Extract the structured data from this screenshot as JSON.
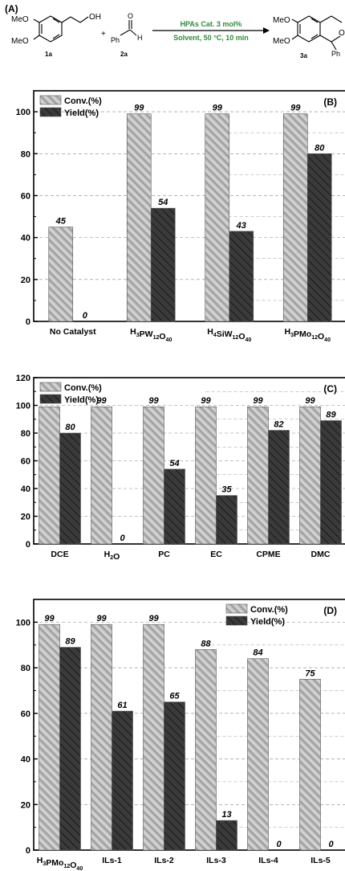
{
  "colors": {
    "reagent_green": "#2e8b3c",
    "conv_fill": "#c8c8c8",
    "yield_fill": "#3a3a3a",
    "axis": "#000000"
  },
  "scheme": {
    "panel": "(A)",
    "c1": "1a",
    "c2": "2a",
    "c3": "3a",
    "s1_ome1": "MeO",
    "s1_ome2": "MeO",
    "s1_oh": "OH",
    "s2_o": "O",
    "s2_h": "H",
    "s2_ph": "Ph",
    "s3_meo1": "MeO",
    "s3_meo2": "MeO",
    "s3_o": "O",
    "s3_ph": "Ph",
    "plus": "+",
    "reagent_top": "HPAs Cat. 3 mol%",
    "reagent_bottom": "Solvent, 50 °C, 10 min"
  },
  "chart_data": [
    {
      "type": "bar",
      "panel": "(B)",
      "categories": [
        "No Catalyst",
        "H3PW12O40",
        "H4SiW12O40",
        "H3PMo12O40"
      ],
      "series": [
        {
          "name": "Conv.(%)",
          "values": [
            45,
            99,
            99,
            99
          ],
          "labels": [
            "45",
            "99",
            "99",
            "99"
          ]
        },
        {
          "name": "Yield(%)",
          "values": [
            0,
            54,
            43,
            80
          ],
          "labels": [
            "0",
            "54",
            "43",
            "80"
          ]
        }
      ],
      "ylim": [
        0,
        110
      ],
      "yticks": [
        "0",
        "20",
        "40",
        "60",
        "80",
        "100"
      ],
      "legend": "top-left"
    },
    {
      "type": "bar",
      "panel": "(C)",
      "categories": [
        "DCE",
        "H2O",
        "PC",
        "EC",
        "CPME",
        "DMC"
      ],
      "series": [
        {
          "name": "Conv.(%)",
          "values": [
            99,
            99,
            99,
            99,
            99,
            99
          ],
          "labels": [
            "99",
            "99",
            "99",
            "99",
            "99",
            "99"
          ]
        },
        {
          "name": "Yield(%)",
          "values": [
            80,
            0,
            54,
            35,
            82,
            89
          ],
          "labels": [
            "80",
            "0",
            "54",
            "35",
            "82",
            "89"
          ]
        }
      ],
      "ylim": [
        0,
        120
      ],
      "yticks": [
        "0",
        "20",
        "40",
        "60",
        "80",
        "100",
        "120"
      ],
      "legend": "top-left"
    },
    {
      "type": "bar",
      "panel": "(D)",
      "categories": [
        "H3PMo12O40",
        "ILs-1",
        "ILs-2",
        "ILs-3",
        "ILs-4",
        "ILs-5"
      ],
      "series": [
        {
          "name": "Conv.(%)",
          "values": [
            99,
            99,
            99,
            88,
            84,
            75
          ],
          "labels": [
            "99",
            "99",
            "99",
            "88",
            "84",
            "75"
          ]
        },
        {
          "name": "Yield(%)",
          "values": [
            89,
            61,
            65,
            13,
            0,
            0
          ],
          "labels": [
            "89",
            "61",
            "65",
            "13",
            "0",
            "0"
          ]
        }
      ],
      "ylim": [
        0,
        110
      ],
      "yticks": [
        "0",
        "20",
        "40",
        "60",
        "80",
        "100"
      ],
      "legend": "top-right"
    }
  ]
}
